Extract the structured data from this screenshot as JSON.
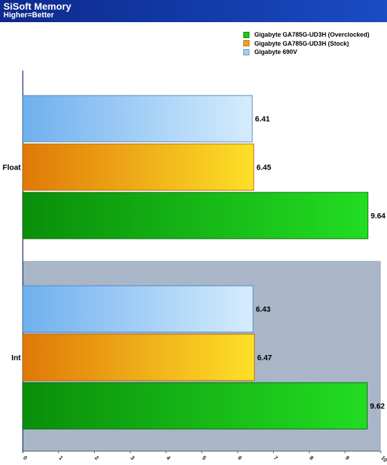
{
  "header": {
    "title": "SiSoft Memory",
    "subtitle": "Higher=Better"
  },
  "chart_data": {
    "type": "bar",
    "orientation": "horizontal",
    "title": "SiSoft Memory",
    "subtitle": "Higher=Better",
    "xlabel": "",
    "ylabel": "",
    "xlim": [
      0,
      10
    ],
    "x_ticks": [
      "0",
      "1",
      "2",
      "3",
      "4",
      "5",
      "6",
      "7",
      "8",
      "9",
      "10"
    ],
    "categories": [
      "Float",
      "Int"
    ],
    "series": [
      {
        "name": "Gigabyte GA785G-UD3H (Overclocked)",
        "color": "#1cc41c",
        "values": [
          9.64,
          9.62
        ],
        "labels": [
          "9.64",
          "9.62"
        ]
      },
      {
        "name": "Gigabyte GA785G-UD3H (Stock)",
        "color": "#f0a020",
        "values": [
          6.45,
          6.47
        ],
        "labels": [
          "6.45",
          "6.47"
        ]
      },
      {
        "name": "Gigabyte 690V",
        "color": "#9fcdf5",
        "values": [
          6.41,
          6.43
        ],
        "labels": [
          "6.41",
          "6.43"
        ]
      }
    ],
    "legend_position": "top-right",
    "grid": false
  }
}
